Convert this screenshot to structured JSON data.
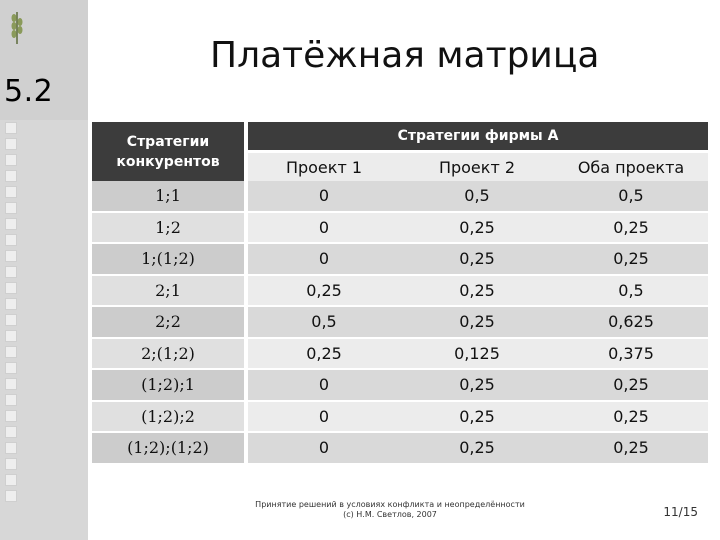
{
  "slide": {
    "section_number": "5.2",
    "title": "Платёжная матрица"
  },
  "table": {
    "corner_header_line1": "Стратегии",
    "corner_header_line2": "конкурентов",
    "firm_header": "Стратегии фирмы А",
    "columns": [
      "Проект 1",
      "Проект 2",
      "Оба проекта"
    ],
    "rows": [
      {
        "label": "1;1",
        "values": [
          "0",
          "0,5",
          "0,5"
        ]
      },
      {
        "label": "1;2",
        "values": [
          "0",
          "0,25",
          "0,25"
        ]
      },
      {
        "label": "1;(1;2)",
        "values": [
          "0",
          "0,25",
          "0,25"
        ]
      },
      {
        "label": "2;1",
        "values": [
          "0,25",
          "0,25",
          "0,5"
        ]
      },
      {
        "label": "2;2",
        "values": [
          "0,5",
          "0,25",
          "0,625"
        ]
      },
      {
        "label": "2;(1;2)",
        "values": [
          "0,25",
          "0,125",
          "0,375"
        ]
      },
      {
        "label": "(1;2);1",
        "values": [
          "0",
          "0,25",
          "0,25"
        ]
      },
      {
        "label": "(1;2);2",
        "values": [
          "0",
          "0,25",
          "0,25"
        ]
      },
      {
        "label": "(1;2);(1;2)",
        "values": [
          "0",
          "0,25",
          "0,25"
        ]
      }
    ]
  },
  "footer": {
    "line1": "Принятие решений в условиях конфликта и неопределённости",
    "line2": "(с) Н.М. Светлов, 2007",
    "page": "11/15"
  },
  "colors": {
    "header_dark": "#3c3c3c",
    "sidebar": "#d7d7d7"
  }
}
